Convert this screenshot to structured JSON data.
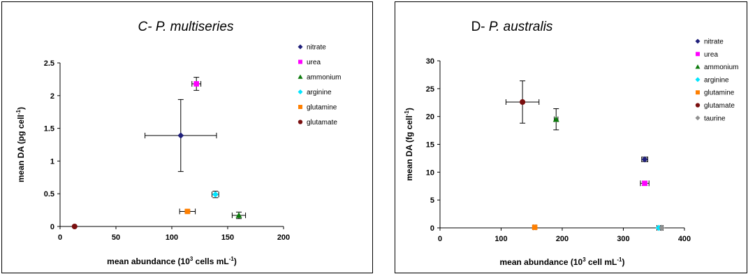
{
  "chart_data": [
    {
      "type": "scatter",
      "title_prefix": "C- ",
      "title_species": "P. multiseries",
      "title_italic": true,
      "xlabel": "mean abundance (10",
      "xlabel_sup": "3",
      "xlabel_rest": " cells mL",
      "xlabel_sup2": "-1",
      "xlabel_end": ")",
      "ylabel": "mean DA (pg cell",
      "ylabel_sup": "-1",
      "ylabel_end": ")",
      "xlim": [
        0,
        200
      ],
      "ylim": [
        0,
        2.5
      ],
      "xticks": [
        0,
        50,
        100,
        150,
        200
      ],
      "yticks": [
        0,
        0.5,
        1,
        1.5,
        2,
        2.5
      ],
      "ytick_labels": [
        "0",
        "0.5",
        "1",
        "1.5",
        "2",
        "2.5"
      ],
      "legend_position": "top-right",
      "series": [
        {
          "name": "nitrate",
          "color": "#1f1f7a",
          "marker": "diamond",
          "x": 108,
          "y": 1.39,
          "xerr": 32,
          "yerr": 0.55
        },
        {
          "name": "urea",
          "color": "#ff00ff",
          "marker": "square",
          "x": 122,
          "y": 2.18,
          "xerr": 4,
          "yerr": 0.1
        },
        {
          "name": "ammonium",
          "color": "#0b7a0b",
          "marker": "triangle",
          "x": 160,
          "y": 0.17,
          "xerr": 6,
          "yerr": 0.05
        },
        {
          "name": "arginine",
          "color": "#00e5ff",
          "marker": "diamond",
          "x": 139,
          "y": 0.49,
          "xerr": 3,
          "yerr": 0.05
        },
        {
          "name": "glutamine",
          "color": "#ff7f00",
          "marker": "square",
          "x": 114,
          "y": 0.23,
          "xerr": 7,
          "yerr": 0.02
        },
        {
          "name": "glutamate",
          "color": "#7a0f0f",
          "marker": "circle",
          "x": 13,
          "y": 0.0,
          "xerr": 0,
          "yerr": 0
        }
      ]
    },
    {
      "type": "scatter",
      "title_prefix": "D- ",
      "title_species": "P. australis",
      "title_italic": true,
      "xlabel": "mean abundance (10",
      "xlabel_sup": "3",
      "xlabel_rest": " cell mL",
      "xlabel_sup2": "-1",
      "xlabel_end": ")",
      "ylabel": "mean DA (fg cell",
      "ylabel_sup": "-1",
      "ylabel_end": ")",
      "xlim": [
        0,
        400
      ],
      "ylim": [
        0,
        30
      ],
      "xticks": [
        0,
        100,
        200,
        300,
        400
      ],
      "yticks": [
        0,
        5,
        10,
        15,
        20,
        25,
        30
      ],
      "ytick_labels": [
        "0",
        "5",
        "10",
        "15",
        "20",
        "25",
        "30"
      ],
      "legend_position": "top-right",
      "series": [
        {
          "name": "nitrate",
          "color": "#1f1f7a",
          "marker": "diamond",
          "x": 335,
          "y": 12.3,
          "xerr": 5,
          "yerr": 0.4
        },
        {
          "name": "urea",
          "color": "#ff00ff",
          "marker": "square",
          "x": 335,
          "y": 8.0,
          "xerr": 7,
          "yerr": 0.4
        },
        {
          "name": "ammonium",
          "color": "#0b7a0b",
          "marker": "triangle",
          "x": 190,
          "y": 19.5,
          "xerr": 3,
          "yerr": 1.9
        },
        {
          "name": "arginine",
          "color": "#00e5ff",
          "marker": "diamond",
          "x": 358,
          "y": 0.0,
          "xerr": 3,
          "yerr": 0
        },
        {
          "name": "glutamine",
          "color": "#ff7f00",
          "marker": "square",
          "x": 155,
          "y": 0.1,
          "xerr": 2,
          "yerr": 0
        },
        {
          "name": "glutamate",
          "color": "#7a0f0f",
          "marker": "circle",
          "x": 135,
          "y": 22.6,
          "xerr": 27,
          "yerr": 3.8
        },
        {
          "name": "taurine",
          "color": "#909090",
          "marker": "diamond",
          "x": 363,
          "y": 0.0,
          "xerr": 2,
          "yerr": 0
        }
      ]
    }
  ]
}
